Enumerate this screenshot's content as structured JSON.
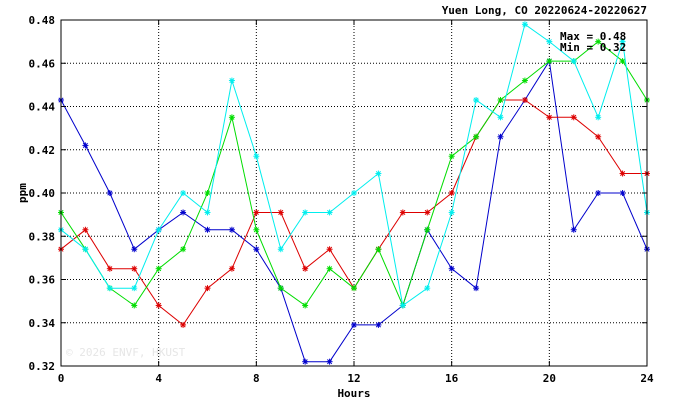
{
  "chart_data": {
    "type": "line",
    "title": "Yuen Long, CO 20220624-20220627",
    "xlabel": "Hours",
    "ylabel": "ppm",
    "xlim": [
      0,
      24
    ],
    "ylim": [
      0.32,
      0.48
    ],
    "xticks": [
      0,
      4,
      8,
      12,
      16,
      20,
      24
    ],
    "yticks": [
      0.32,
      0.34,
      0.36,
      0.38,
      0.4,
      0.42,
      0.44,
      0.46,
      0.48
    ],
    "ytick_labels": [
      "0.32",
      "0.34",
      "0.36",
      "0.38",
      "0.40",
      "0.42",
      "0.44",
      "0.46",
      "0.48"
    ],
    "grid": true,
    "max_label": "Max = 0.48",
    "min_label": "Min = 0.32",
    "watermark": "© 2026  ENVF, HKUST",
    "x": [
      0,
      1,
      2,
      3,
      4,
      5,
      6,
      7,
      8,
      9,
      10,
      11,
      12,
      13,
      14,
      15,
      16,
      17,
      18,
      19,
      20,
      21,
      22,
      23,
      24
    ],
    "series": [
      {
        "color": "#0000cc",
        "values": [
          0.443,
          0.422,
          0.4,
          0.374,
          0.383,
          0.391,
          0.383,
          0.383,
          0.374,
          0.356,
          0.322,
          0.322,
          0.339,
          0.339,
          0.348,
          0.383,
          0.365,
          0.356,
          0.426,
          0.443,
          0.461,
          0.383,
          0.4,
          0.4,
          0.374
        ]
      },
      {
        "color": "#dd0000",
        "values": [
          0.374,
          0.383,
          0.365,
          0.365,
          0.348,
          0.339,
          0.356,
          0.365,
          0.391,
          0.391,
          0.365,
          0.374,
          0.356,
          0.374,
          0.391,
          0.391,
          0.4,
          0.426,
          0.443,
          0.443,
          0.435,
          0.435,
          0.426,
          0.409,
          0.409
        ]
      },
      {
        "color": "#00dd00",
        "values": [
          0.391,
          0.374,
          0.356,
          0.348,
          0.365,
          0.374,
          0.4,
          0.435,
          0.383,
          0.356,
          0.348,
          0.365,
          0.356,
          0.374,
          0.348,
          0.383,
          0.417,
          0.426,
          0.443,
          0.452,
          0.461,
          0.461,
          0.47,
          0.461,
          0.443
        ]
      },
      {
        "color": "#00eeee",
        "values": [
          0.383,
          0.374,
          0.356,
          0.356,
          0.383,
          0.4,
          0.391,
          0.452,
          0.417,
          0.374,
          0.391,
          0.391,
          0.4,
          0.409,
          0.348,
          0.356,
          0.391,
          0.443,
          0.435,
          0.478,
          0.47,
          0.461,
          0.435,
          0.47,
          0.391
        ]
      }
    ]
  }
}
